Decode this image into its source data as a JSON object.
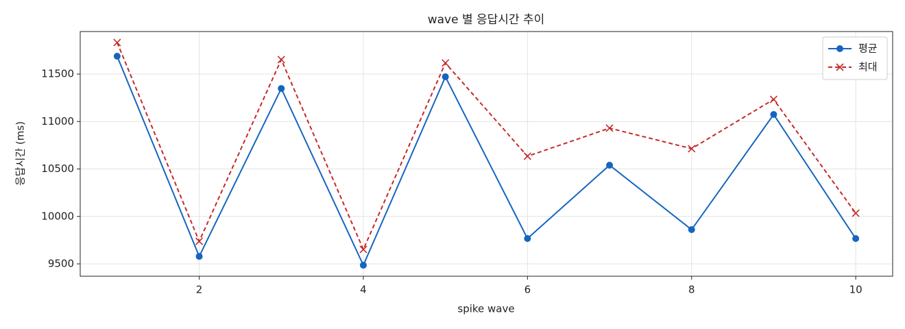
{
  "chart_data": {
    "type": "line",
    "title": "wave 별 응답시간 추이",
    "xlabel": "spike wave",
    "ylabel": "응답시간 (ms)",
    "x": [
      1,
      2,
      3,
      4,
      5,
      6,
      7,
      8,
      9,
      10
    ],
    "series": [
      {
        "name": "평균",
        "color": "#1565c0",
        "marker": "o",
        "dash": false,
        "values": [
          11688,
          9579,
          11348,
          9486,
          11471,
          9767,
          10540,
          9861,
          11074,
          9767
        ]
      },
      {
        "name": "최대",
        "color": "#c62828",
        "marker": "x",
        "dash": true,
        "values": [
          11832,
          9738,
          11652,
          9652,
          11616,
          10634,
          10930,
          10714,
          11233,
          10034
        ]
      }
    ],
    "xlim": [
      0.55,
      10.45
    ],
    "xticks": [
      2,
      4,
      6,
      8,
      10
    ],
    "ylim": [
      9370,
      11948
    ],
    "yticks": [
      9500,
      10000,
      10500,
      11000,
      11500
    ],
    "grid": true,
    "legend": "upper right"
  }
}
